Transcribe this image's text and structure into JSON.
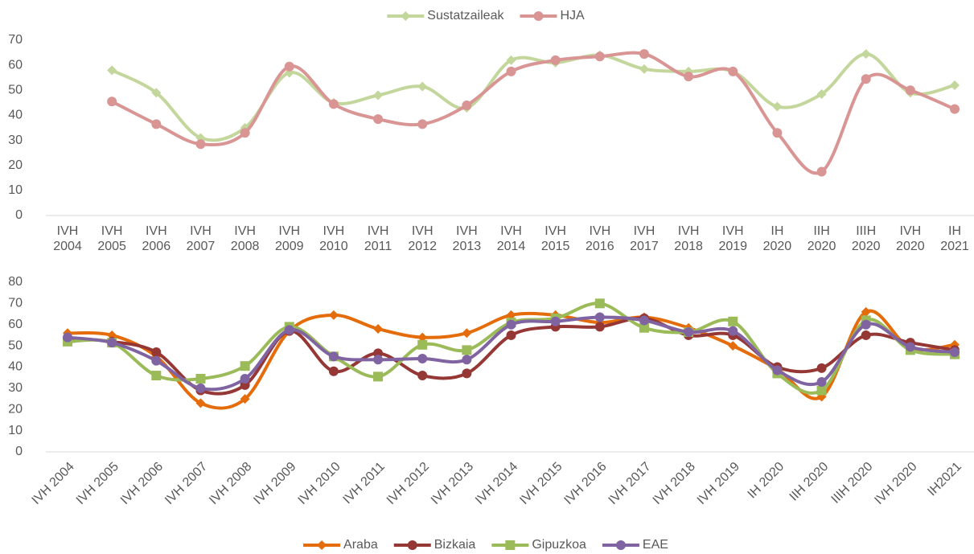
{
  "chart_data": [
    {
      "type": "line",
      "categories": [
        "IVH 2004",
        "IVH 2005",
        "IVH 2006",
        "IVH 2007",
        "IVH 2008",
        "IVH 2009",
        "IVH 2010",
        "IVH 2011",
        "IVH 2012",
        "IVH 2013",
        "IVH 2014",
        "IVH 2015",
        "IVH 2016",
        "IVH 2017",
        "IVH 2018",
        "IVH 2019",
        "IH 2020",
        "IIH 2020",
        "IIIH 2020",
        "IVH 2020",
        "IH 2021"
      ],
      "series": [
        {
          "name": "Sustatzaileak",
          "color": "#c3d69b",
          "marker": "diamond",
          "values": [
            null,
            58,
            49,
            31,
            35,
            57,
            45,
            48,
            51.5,
            43,
            62,
            61,
            64,
            58.5,
            57.5,
            57.5,
            43.5,
            48.5,
            64.5,
            49,
            52
          ]
        },
        {
          "name": "HJA",
          "color": "#d99594",
          "marker": "circle",
          "values": [
            null,
            45.5,
            36.5,
            28.5,
            33,
            59.5,
            44.5,
            38.5,
            36.5,
            44,
            57.5,
            62,
            63.5,
            64.5,
            55.5,
            57.5,
            33,
            17.5,
            54.5,
            50,
            42.5
          ]
        }
      ],
      "ylim": [
        0,
        70
      ],
      "yticks": [
        0,
        10,
        20,
        30,
        40,
        50,
        60,
        70
      ],
      "grid": false,
      "legend": "top",
      "smooth": true
    },
    {
      "type": "line",
      "categories": [
        "IVH 2004",
        "IVH 2005",
        "IVH 2006",
        "IVH 2007",
        "IVH 2008",
        "IVH 2009",
        "IVH 2010",
        "IVH 2011",
        "IVH 2012",
        "IVH 2013",
        "IVH 2014",
        "IVH 2015",
        "IVH 2016",
        "IVH 2017",
        "IVH 2018",
        "IVH 2019",
        "IH 2020",
        "IIH 2020",
        "IIIH 2020",
        "IVH 2020",
        "IH2021"
      ],
      "series": [
        {
          "name": "Araba",
          "color": "#e46c0a",
          "marker": "diamond",
          "values": [
            56,
            55,
            45,
            23,
            25,
            57,
            64.5,
            58,
            54,
            56,
            64.5,
            64.5,
            61,
            63.5,
            58.5,
            50,
            39,
            26,
            66,
            49,
            50.5
          ]
        },
        {
          "name": "Bizkaia",
          "color": "#953735",
          "marker": "circle",
          "values": [
            53.5,
            52,
            47,
            29,
            31.5,
            57,
            38,
            46.5,
            36,
            37,
            55,
            59,
            59,
            63,
            55,
            55,
            40,
            39.5,
            55,
            51.5,
            48
          ]
        },
        {
          "name": "Gipuzkoa",
          "color": "#9bbb59",
          "marker": "square",
          "values": [
            52,
            51.5,
            36,
            34.5,
            40.5,
            59,
            45,
            35.5,
            50.5,
            48,
            61,
            63,
            70,
            58.5,
            56.5,
            61.5,
            37,
            29,
            62,
            48,
            46
          ]
        },
        {
          "name": "EAE",
          "color": "#8064a2",
          "marker": "circle",
          "values": [
            54,
            51.5,
            43,
            30,
            34.5,
            57.5,
            45,
            43.5,
            44,
            43.5,
            60,
            61.5,
            63.5,
            62,
            56.5,
            57,
            38.5,
            33,
            60,
            49.5,
            47
          ]
        }
      ],
      "ylim": [
        0,
        80
      ],
      "yticks": [
        0,
        10,
        20,
        30,
        40,
        50,
        60,
        70,
        80
      ],
      "grid": false,
      "legend": "bottom",
      "smooth": true
    }
  ]
}
